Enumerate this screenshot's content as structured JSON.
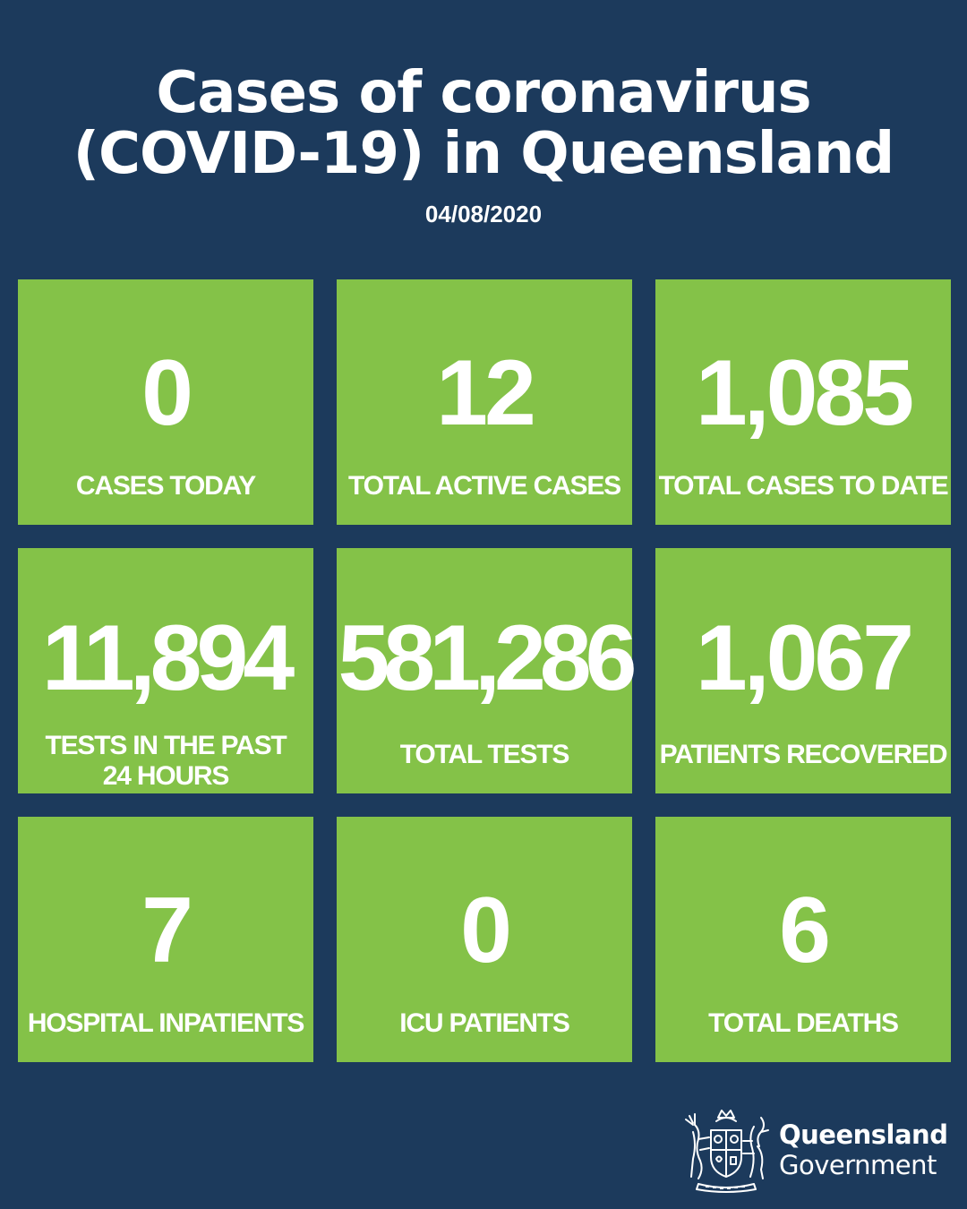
{
  "header": {
    "title_line1": "Cases of coronavirus",
    "title_line2": "(COVID-19) in Queensland",
    "date": "04/08/2020"
  },
  "colors": {
    "background": "#1c3a5c",
    "tile": "#84c248",
    "text": "#ffffff"
  },
  "tiles": [
    {
      "value": "0",
      "label": "CASES TODAY"
    },
    {
      "value": "12",
      "label": "TOTAL ACTIVE CASES"
    },
    {
      "value": "1,085",
      "label": "TOTAL CASES TO DATE"
    },
    {
      "value": "11,894",
      "label": "TESTS IN THE PAST\n24 HOURS"
    },
    {
      "value": "581,286",
      "label": "TOTAL TESTS"
    },
    {
      "value": "1,067",
      "label": "PATIENTS RECOVERED"
    },
    {
      "value": "7",
      "label": "HOSPITAL INPATIENTS"
    },
    {
      "value": "0",
      "label": "ICU PATIENTS"
    },
    {
      "value": "6",
      "label": "TOTAL DEATHS"
    }
  ],
  "footer": {
    "logo_icon": "queensland-coat-of-arms-icon",
    "org_line1": "Queensland",
    "org_line2": "Government"
  }
}
